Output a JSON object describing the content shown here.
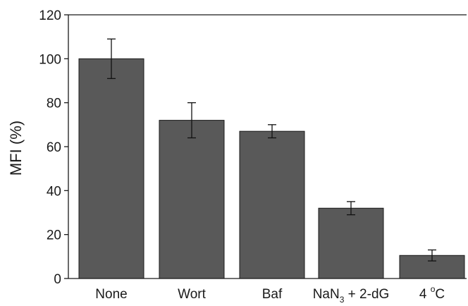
{
  "chart_data": {
    "type": "bar",
    "title": "",
    "xlabel": "",
    "ylabel": "MFI (%)",
    "ylim": [
      0,
      120
    ],
    "yticks": [
      0,
      20,
      40,
      60,
      80,
      100,
      120
    ],
    "grid": false,
    "categories": [
      "None",
      "Wort",
      "Baf",
      "NaN3 + 2-dG",
      "4 oC"
    ],
    "values": [
      100,
      72,
      67,
      32,
      10.5
    ],
    "error": [
      9,
      8,
      3,
      3,
      2.5
    ],
    "bar_color": "#595959",
    "label_parts": {
      "nan3": {
        "main": "NaN",
        "sub": "3",
        "rest": " + 2-dG"
      },
      "cold": {
        "main": "4 ",
        "sup": "o",
        "rest": "C"
      }
    }
  }
}
